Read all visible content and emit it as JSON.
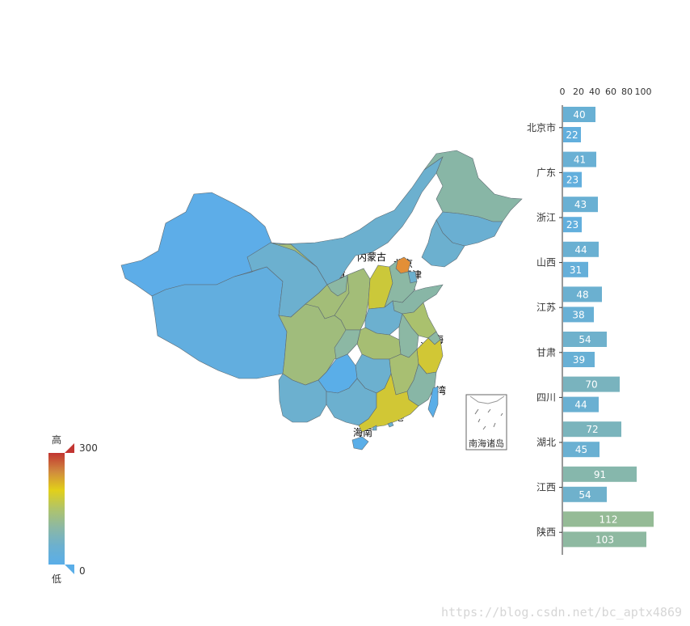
{
  "chart_data": [
    {
      "type": "choropleth-map",
      "title": "",
      "visual_map": {
        "min": 0,
        "max": 300,
        "high_label": "高",
        "low_label": "低",
        "colors": [
          "#5aaee8",
          "#6cb0cf",
          "#8cb8a4",
          "#b0c46a",
          "#e2d019",
          "#d08a3e",
          "#c23531"
        ]
      },
      "regions": [
        {
          "name": "新疆",
          "color": "#5dade8"
        },
        {
          "name": "西藏",
          "color": "#62aedf"
        },
        {
          "name": "青海",
          "color": "#6cb0cf"
        },
        {
          "name": "甘肃",
          "color": "#a3bd78"
        },
        {
          "name": "内蒙古",
          "color": "#6cb0cf"
        },
        {
          "name": "宁夏",
          "color": "#8cb8a4"
        },
        {
          "name": "陕西",
          "color": "#a3bd78"
        },
        {
          "name": "山西",
          "color": "#cbc83a"
        },
        {
          "name": "黑龙江",
          "color": "#88b6a6"
        },
        {
          "name": "吉林",
          "color": "#6aafd2"
        },
        {
          "name": "辽宁",
          "color": "#6cb0cf"
        },
        {
          "name": "北京",
          "color": "#e38f37"
        },
        {
          "name": "天津",
          "color": "#6cb0cf"
        },
        {
          "name": "河北",
          "color": "#8cb8a4"
        },
        {
          "name": "山东",
          "color": "#88b6a6"
        },
        {
          "name": "河南",
          "color": "#6cb0cf"
        },
        {
          "name": "江苏",
          "color": "#aac16e"
        },
        {
          "name": "安徽",
          "color": "#8cb8a4"
        },
        {
          "name": "上海",
          "color": "#8cb8a4"
        },
        {
          "name": "浙江",
          "color": "#d1c735"
        },
        {
          "name": "湖北",
          "color": "#a6be73"
        },
        {
          "name": "四川",
          "color": "#a0bc7c"
        },
        {
          "name": "重庆",
          "color": "#8cb8a4"
        },
        {
          "name": "湖南",
          "color": "#6cb0cf"
        },
        {
          "name": "江西",
          "color": "#a8bf72"
        },
        {
          "name": "福建",
          "color": "#88b6a6"
        },
        {
          "name": "贵州",
          "color": "#5aaee8"
        },
        {
          "name": "云南",
          "color": "#6cb0cf"
        },
        {
          "name": "广西",
          "color": "#6cb0cf"
        },
        {
          "name": "广东",
          "color": "#d1c735"
        },
        {
          "name": "海南",
          "color": "#5aaee8"
        },
        {
          "name": "台湾",
          "color": "#5aaee8"
        },
        {
          "name": "香港",
          "color": "#6cb0cf"
        },
        {
          "name": "澳门",
          "color": "#6cb0cf"
        }
      ],
      "inset_label": "南海诸岛"
    },
    {
      "type": "bar",
      "orientation": "horizontal",
      "categories": [
        "北京市",
        "广东",
        "浙江",
        "山西",
        "江苏",
        "甘肃",
        "四川",
        "湖北",
        "江西",
        "陕西"
      ],
      "series": [
        {
          "values": [
            40,
            41,
            43,
            44,
            48,
            54,
            70,
            72,
            91,
            112
          ]
        },
        {
          "values": [
            22,
            23,
            23,
            31,
            38,
            39,
            44,
            45,
            54,
            103
          ]
        }
      ],
      "x_ticks": [
        0,
        20,
        40,
        60,
        80,
        100
      ],
      "xlim": [
        0,
        112
      ]
    }
  ],
  "watermark": "https://blog.csdn.net/bc_aptx4869"
}
